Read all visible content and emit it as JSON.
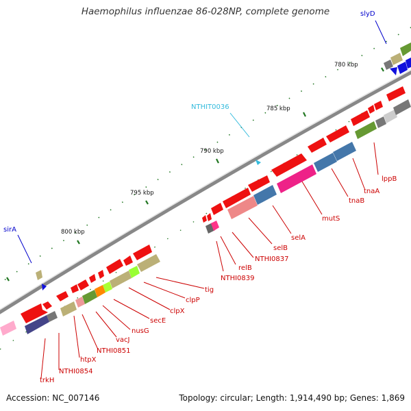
{
  "title": "Haemophilus influenzae 86-028NP, complete genome",
  "accession": "Accession: NC_007146",
  "summary": "Topology: circular; Length: 1,914,490 bp; Genes: 1,869",
  "scale_labels": [
    "780 kbp",
    "785 kbp",
    "790 kbp",
    "795 kbp",
    "800 kbp"
  ],
  "gene_labels": {
    "slyD": "slyD",
    "NTHIT0036": "NTHIT0036",
    "sirA": "sirA",
    "lppB": "lppB",
    "tnaA": "tnaA",
    "tnaB": "tnaB",
    "mutS": "mutS",
    "selA": "selA",
    "selB": "selB",
    "NTHI0837": "NTHI0837",
    "relB": "relB",
    "NTHI0839": "NTHI0839",
    "tig": "tig",
    "clpP": "clpP",
    "clpX": "clpX",
    "secE": "secE",
    "nusG": "nusG",
    "vacJ": "vacJ",
    "NTHI0851": "NTHI0851",
    "htpX": "htpX",
    "NTHI0854": "NTHI0854",
    "trkH": "trkH"
  },
  "colors": {
    "backbone": "#888888",
    "gene_red": "#ee1111",
    "blue_gene": "#1111dd",
    "label_red": "#cc0000",
    "label_blue": "#0000cc",
    "label_cyan": "#33bbdd",
    "tick_green": "#227722"
  }
}
